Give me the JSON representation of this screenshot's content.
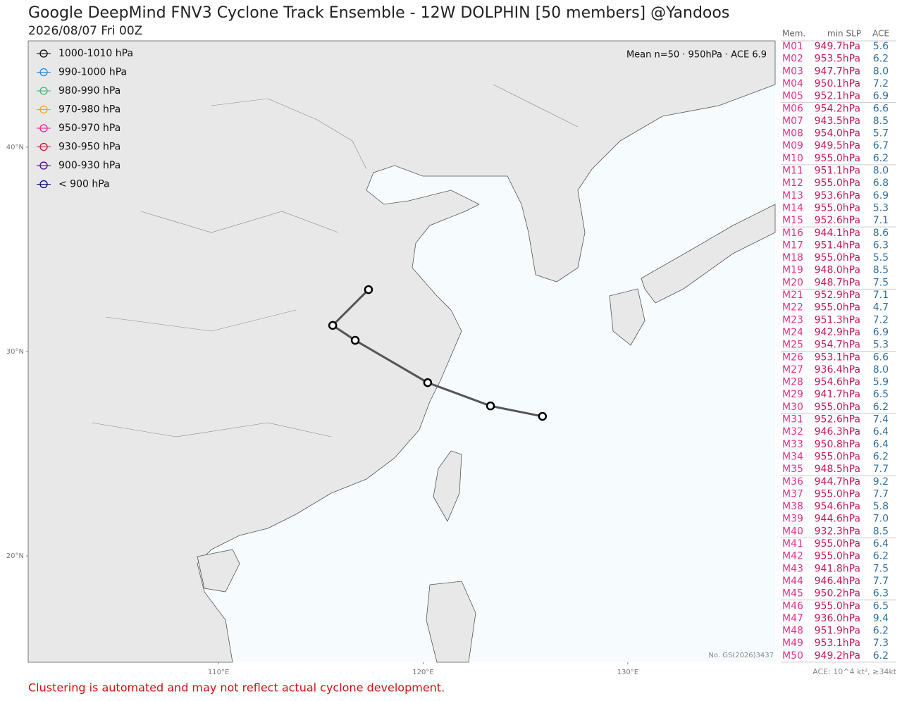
{
  "header": {
    "title": "Google DeepMind FNV3 Cyclone Track Ensemble - 12W DOLPHIN [50 members] @Yandoos",
    "subtitle": "2026/08/07 Fri 00Z"
  },
  "map": {
    "xlim": [
      100.7,
      137.2
    ],
    "ylim": [
      14.8,
      45.2
    ],
    "lat_ticks": [
      {
        "value": 40,
        "label": "40°N"
      },
      {
        "value": 30,
        "label": "30°N"
      },
      {
        "value": 20,
        "label": "20°N"
      }
    ],
    "lon_ticks": [
      {
        "value": 110,
        "label": "110°E"
      },
      {
        "value": 120,
        "label": "120°E"
      },
      {
        "value": 130,
        "label": "130°E"
      }
    ],
    "mean_label": "Mean n=50 · 950hPa · ACE 6.9",
    "mean_track": {
      "lon": [
        125.83,
        123.29,
        120.22,
        116.68,
        115.58,
        117.33
      ],
      "lat": [
        26.83,
        27.34,
        28.48,
        30.55,
        31.28,
        33.03
      ],
      "color": "#555555"
    },
    "approval": "No. GS(2026)3437",
    "legend": [
      {
        "label": "1000-1010 hPa",
        "color": "#000000"
      },
      {
        "label": "990-1000 hPa",
        "color": "#1e88e5"
      },
      {
        "label": "980-990 hPa",
        "color": "#3cb371"
      },
      {
        "label": "970-980 hPa",
        "color": "#ffa500"
      },
      {
        "label": "950-970 hPa",
        "color": "#ff1493"
      },
      {
        "label": "930-950 hPa",
        "color": "#c8102e"
      },
      {
        "label": "900-930 hPa",
        "color": "#4b0082"
      },
      {
        "label": "< 900 hPa",
        "color": "#000080"
      }
    ]
  },
  "table": {
    "header": [
      "Mem.",
      "min SLP",
      "ACE"
    ],
    "rows": [
      [
        "M01",
        "949.7hPa",
        "5.6"
      ],
      [
        "M02",
        "953.5hPa",
        "6.2"
      ],
      [
        "M03",
        "947.7hPa",
        "8.0"
      ],
      [
        "M04",
        "950.1hPa",
        "7.2"
      ],
      [
        "M05",
        "952.1hPa",
        "6.9"
      ],
      [
        "M06",
        "954.2hPa",
        "6.6"
      ],
      [
        "M07",
        "943.5hPa",
        "8.5"
      ],
      [
        "M08",
        "954.0hPa",
        "5.7"
      ],
      [
        "M09",
        "949.5hPa",
        "6.7"
      ],
      [
        "M10",
        "955.0hPa",
        "6.2"
      ],
      [
        "M11",
        "951.1hPa",
        "8.0"
      ],
      [
        "M12",
        "955.0hPa",
        "6.8"
      ],
      [
        "M13",
        "953.6hPa",
        "6.9"
      ],
      [
        "M14",
        "955.0hPa",
        "5.3"
      ],
      [
        "M15",
        "952.6hPa",
        "7.1"
      ],
      [
        "M16",
        "944.1hPa",
        "8.6"
      ],
      [
        "M17",
        "951.4hPa",
        "6.3"
      ],
      [
        "M18",
        "955.0hPa",
        "5.5"
      ],
      [
        "M19",
        "948.0hPa",
        "8.5"
      ],
      [
        "M20",
        "948.7hPa",
        "7.5"
      ],
      [
        "M21",
        "952.9hPa",
        "7.1"
      ],
      [
        "M22",
        "955.0hPa",
        "4.7"
      ],
      [
        "M23",
        "951.3hPa",
        "7.2"
      ],
      [
        "M24",
        "942.9hPa",
        "6.9"
      ],
      [
        "M25",
        "954.7hPa",
        "5.3"
      ],
      [
        "M26",
        "953.1hPa",
        "6.6"
      ],
      [
        "M27",
        "936.4hPa",
        "8.0"
      ],
      [
        "M28",
        "954.6hPa",
        "5.9"
      ],
      [
        "M29",
        "941.7hPa",
        "6.5"
      ],
      [
        "M30",
        "955.0hPa",
        "6.2"
      ],
      [
        "M31",
        "952.6hPa",
        "7.4"
      ],
      [
        "M32",
        "946.3hPa",
        "6.4"
      ],
      [
        "M33",
        "950.8hPa",
        "6.4"
      ],
      [
        "M34",
        "955.0hPa",
        "6.2"
      ],
      [
        "M35",
        "948.5hPa",
        "7.7"
      ],
      [
        "M36",
        "944.7hPa",
        "9.2"
      ],
      [
        "M37",
        "955.0hPa",
        "7.7"
      ],
      [
        "M38",
        "954.6hPa",
        "5.8"
      ],
      [
        "M39",
        "944.6hPa",
        "7.0"
      ],
      [
        "M40",
        "932.3hPa",
        "8.5"
      ],
      [
        "M41",
        "955.0hPa",
        "6.4"
      ],
      [
        "M42",
        "955.0hPa",
        "6.2"
      ],
      [
        "M43",
        "941.8hPa",
        "7.5"
      ],
      [
        "M44",
        "946.4hPa",
        "7.7"
      ],
      [
        "M45",
        "950.2hPa",
        "6.3"
      ],
      [
        "M46",
        "955.0hPa",
        "6.5"
      ],
      [
        "M47",
        "936.0hPa",
        "9.4"
      ],
      [
        "M48",
        "951.9hPa",
        "6.2"
      ],
      [
        "M49",
        "953.1hPa",
        "7.3"
      ],
      [
        "M50",
        "949.2hPa",
        "6.2"
      ]
    ],
    "note": "ACE: 10^4 kt², ≥34kt"
  },
  "footer": {
    "disclaimer": "Clustering is automated and may not reflect actual cyclone development."
  }
}
